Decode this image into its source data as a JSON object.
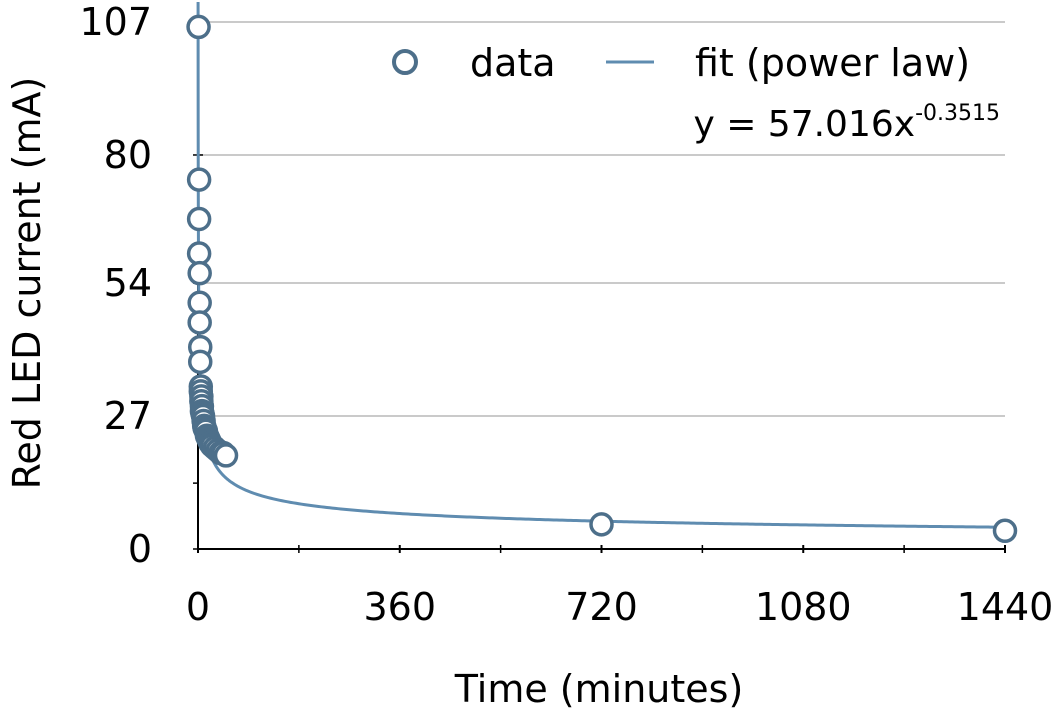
{
  "chart_data": {
    "type": "scatter",
    "xlabel": "Time (minutes)",
    "ylabel": "Red LED current (mA)",
    "xlim": [
      0,
      1440
    ],
    "ylim": [
      0,
      107
    ],
    "x_ticks": [
      "0",
      "360",
      "720",
      "1080",
      "1440"
    ],
    "y_ticks": [
      "0",
      "27",
      "54",
      "80",
      "107"
    ],
    "grid": "horizontal",
    "legend_position": "top-right",
    "legend": {
      "data_label": "data",
      "fit_label": "fit (power law)"
    },
    "equation": {
      "base": "y = 57.016x",
      "exponent": "-0.3515"
    },
    "fit": {
      "type": "power",
      "a": 57.016,
      "b": -0.3515
    },
    "series": [
      {
        "name": "data",
        "points": [
          [
            1,
            106
          ],
          [
            2,
            75
          ],
          [
            2,
            67
          ],
          [
            2,
            60
          ],
          [
            3,
            56
          ],
          [
            3,
            50
          ],
          [
            3,
            46
          ],
          [
            4,
            41
          ],
          [
            4,
            38
          ],
          [
            5,
            33
          ],
          [
            5,
            32
          ],
          [
            6,
            31
          ],
          [
            6,
            30
          ],
          [
            7,
            29
          ],
          [
            7,
            28
          ],
          [
            8,
            27.5
          ],
          [
            9,
            27
          ],
          [
            10,
            26
          ],
          [
            11,
            25
          ],
          [
            12,
            24.5
          ],
          [
            14,
            24
          ],
          [
            16,
            23
          ],
          [
            18,
            22.5
          ],
          [
            20,
            22
          ],
          [
            22,
            21.5
          ],
          [
            25,
            21
          ],
          [
            30,
            20.5
          ],
          [
            35,
            20
          ],
          [
            40,
            19.5
          ],
          [
            45,
            19.5
          ],
          [
            50,
            19
          ],
          [
            720,
            5
          ],
          [
            1440,
            3.7
          ]
        ]
      }
    ],
    "colors": {
      "marker": "#4d6f8a",
      "fit_line": "#5f8cb0",
      "grid": "#b9b9b9",
      "axis": "#000000"
    }
  }
}
